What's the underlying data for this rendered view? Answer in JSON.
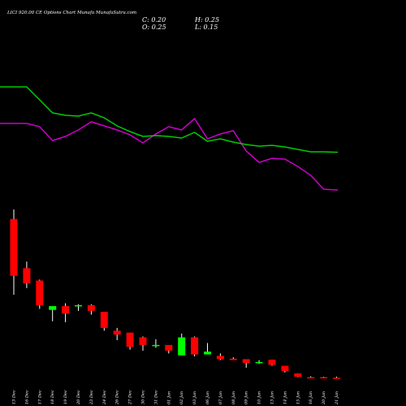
{
  "title": "LICI 920.00 CE Options Chart Munafa",
  "site": "MunafaSutra.com",
  "ohlc": {
    "c": "C: 0.20",
    "h": "H: 0.25",
    "o": "O: 0.25",
    "l": "L: 0.15"
  },
  "colors": {
    "background": "#000000",
    "up": "#00ff00",
    "down": "#ff0000",
    "ma_fast": "#00cc00",
    "ma_slow": "#cc00cc",
    "wick": "#ffffff"
  },
  "chart_data": {
    "type": "candlestick",
    "categories": [
      "13 Dec",
      "16 Dec",
      "17 Dec",
      "18 Dec",
      "19 Dec",
      "20 Dec",
      "23 Dec",
      "24 Dec",
      "26 Dec",
      "27 Dec",
      "30 Dec",
      "31 Dec",
      "01 Jan",
      "02 Jan",
      "03 Jan",
      "06 Jan",
      "07 Jan",
      "08 Jan",
      "09 Jan",
      "10 Jan",
      "13 Jan",
      "14 Jan",
      "15 Jan",
      "16 Jan",
      "20 Jan",
      "21 Jan"
    ],
    "candles": [
      {
        "o": 11.0,
        "h": 12.0,
        "l": 3.0,
        "c": 5.0
      },
      {
        "o": 5.8,
        "h": 6.5,
        "l": 3.7,
        "c": 4.2
      },
      {
        "o": 4.5,
        "h": 4.6,
        "l": 1.5,
        "c": 1.9
      },
      {
        "o": 1.4,
        "h": 1.8,
        "l": 0.2,
        "c": 1.8
      },
      {
        "o": 1.8,
        "h": 2.1,
        "l": 0.1,
        "c": 1.0
      },
      {
        "o": 1.85,
        "h": 2.0,
        "l": 1.3,
        "c": 1.9
      },
      {
        "o": 1.9,
        "h": 2.0,
        "l": 0.9,
        "c": 1.3
      },
      {
        "o": 1.2,
        "h": 1.2,
        "l": -0.8,
        "c": -0.5
      },
      {
        "o": -0.8,
        "h": -0.5,
        "l": -1.8,
        "c": -1.2
      },
      {
        "o": -1.0,
        "h": -1.0,
        "l": -2.8,
        "c": -2.5
      },
      {
        "o": -1.5,
        "h": -1.4,
        "l": -2.9,
        "c": -2.3
      },
      {
        "o": -2.35,
        "h": -1.7,
        "l": -2.6,
        "c": -2.3
      },
      {
        "o": -2.3,
        "h": -2.4,
        "l": -3.2,
        "c": -2.9
      },
      {
        "o": -3.4,
        "h": -1.1,
        "l": -3.4,
        "c": -1.5
      },
      {
        "o": -1.5,
        "h": -1.4,
        "l": -3.5,
        "c": -3.3
      },
      {
        "o": -3.3,
        "h": -2.1,
        "l": -3.3,
        "c": -3.0
      },
      {
        "o": -3.45,
        "h": -3.2,
        "l": -3.9,
        "c": -3.8
      },
      {
        "o": -3.75,
        "h": -3.6,
        "l": -3.9,
        "c": -3.9
      },
      {
        "o": -3.8,
        "h": -3.85,
        "l": -4.7,
        "c": -4.2
      },
      {
        "o": -4.2,
        "h": -3.9,
        "l": -4.3,
        "c": -4.1
      },
      {
        "o": -3.85,
        "h": -3.85,
        "l": -4.5,
        "c": -4.4
      },
      {
        "o": -4.5,
        "h": -4.5,
        "l": -5.2,
        "c": -5.05
      },
      {
        "o": -5.3,
        "h": -5.3,
        "l": -5.7,
        "c": -5.65
      },
      {
        "o": -5.7,
        "h": -5.6,
        "l": -5.75,
        "c": -5.75
      },
      {
        "o": -5.7,
        "h": -5.65,
        "l": -5.75,
        "c": -5.75
      },
      {
        "o": -5.75,
        "h": -5.65,
        "l": -5.85,
        "c": -5.85
      }
    ],
    "ma_fast": {
      "x": [
        0,
        1,
        2,
        3,
        4,
        5,
        6,
        7,
        8,
        9,
        10,
        11,
        12,
        13,
        14,
        15,
        16,
        17,
        18,
        19,
        20,
        21,
        22,
        23,
        24,
        25
      ],
      "y": [
        107,
        107,
        123,
        139,
        142,
        143,
        139,
        145,
        155,
        162,
        168,
        167,
        168,
        170,
        163,
        174,
        171,
        175,
        178,
        180,
        179,
        181,
        184,
        187,
        187,
        187.5
      ]
    },
    "ma_slow": {
      "x": [
        0,
        1,
        2,
        3,
        4,
        5,
        6,
        7,
        8,
        9,
        10,
        11,
        12,
        13,
        14,
        15,
        16,
        17,
        18,
        19,
        20,
        21,
        22,
        23,
        24,
        25
      ],
      "y": [
        152,
        152,
        156,
        173,
        168,
        160,
        150,
        155,
        160,
        166,
        176,
        165,
        156,
        160,
        146,
        171,
        165,
        161,
        186,
        200,
        195,
        196,
        205,
        216,
        233,
        234
      ]
    },
    "ylim": [
      -6,
      12
    ]
  }
}
